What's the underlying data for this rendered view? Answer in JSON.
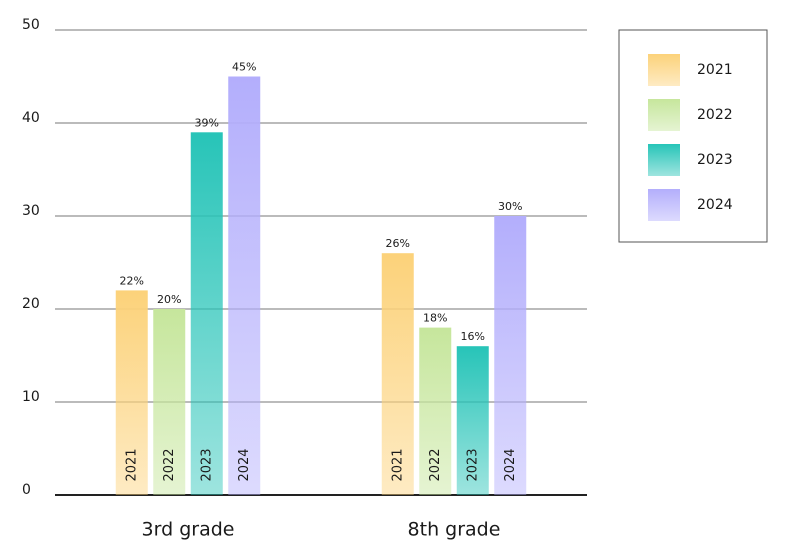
{
  "chart_data": {
    "type": "bar",
    "categories": [
      "3rd grade",
      "8th grade"
    ],
    "series": [
      {
        "name": "2021",
        "color": "#fcd27a",
        "values": [
          22,
          26
        ],
        "value_labels": [
          "22%",
          "26%"
        ]
      },
      {
        "name": "2022",
        "color": "#c6e69c",
        "values": [
          20,
          18
        ],
        "value_labels": [
          "20%",
          "18%"
        ]
      },
      {
        "name": "2023",
        "color": "#27c4b8",
        "values": [
          39,
          16
        ],
        "value_labels": [
          "39%",
          "16%"
        ]
      },
      {
        "name": "2024",
        "color": "#b3aefc",
        "values": [
          45,
          30
        ],
        "value_labels": [
          "45%",
          "30%"
        ]
      }
    ],
    "ylim": [
      0,
      50
    ],
    "yticks": [
      0,
      10,
      20,
      30,
      40,
      50
    ],
    "grid": true,
    "legend": "right"
  }
}
